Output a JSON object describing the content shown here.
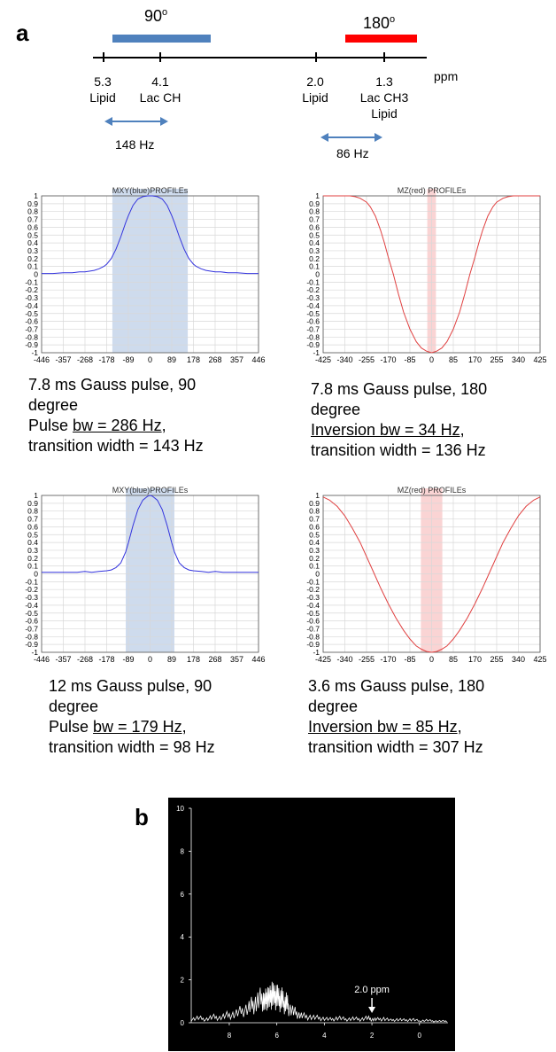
{
  "panel_a_label": "a",
  "panel_b_label": "b",
  "scale": {
    "bar_90_label": "90",
    "bar_90_sup": "o",
    "bar_90_color": "#4f81bd",
    "bar_180_label": "180",
    "bar_180_sup": "o",
    "bar_180_color": "#ff0000",
    "unit": "ppm",
    "ticks": [
      {
        "value": "5.3",
        "name": "Lipid"
      },
      {
        "value": "4.1",
        "name": "Lac CH"
      },
      {
        "value": "2.0",
        "name": "Lipid"
      },
      {
        "value": "1.3",
        "name": "Lac CH3\nLipid"
      }
    ],
    "arrow_left_label": "148 Hz",
    "arrow_right_label": "86 Hz",
    "arrow_color": "#4f81bd"
  },
  "captions": [
    {
      "line1": "7.8 ms Gauss pulse, 90",
      "line2": "degree",
      "line3_pre": "Pulse ",
      "line3_u": "bw = 286 Hz",
      "line3_post": ",",
      "line4": "transition width = 143 Hz"
    },
    {
      "line1": "7.8 ms Gauss pulse, 180",
      "line2": "degree",
      "line3_pre": "",
      "line3_u": "Inversion bw = 34 Hz",
      "line3_post": ",",
      "line4": "transition width = 136 Hz"
    },
    {
      "line1": "12 ms Gauss pulse, 90",
      "line2": "degree",
      "line3_pre": "Pulse ",
      "line3_u": "bw = 179 Hz",
      "line3_post": ",",
      "line4": "transition width = 98 Hz"
    },
    {
      "line1": "3.6 ms Gauss pulse, 180",
      "line2": "degree",
      "line3_pre": "",
      "line3_u": "Inversion bw = 85 Hz",
      "line3_post": ",",
      "line4": "transition width = 307 Hz"
    }
  ],
  "chart_data": [
    {
      "type": "line",
      "title": "MXY(blue)PROFILEs",
      "series": [
        {
          "color": "#3333dd",
          "x": [
            -446,
            -400,
            -357,
            -320,
            -290,
            -268,
            -250,
            -230,
            -210,
            -190,
            -178,
            -160,
            -140,
            -120,
            -100,
            -89,
            -70,
            -50,
            -30,
            -10,
            0,
            10,
            30,
            50,
            70,
            89,
            100,
            120,
            140,
            160,
            178,
            190,
            210,
            230,
            250,
            268,
            290,
            320,
            357,
            400,
            446
          ],
          "y": [
            0.01,
            0.01,
            0.02,
            0.02,
            0.03,
            0.03,
            0.04,
            0.05,
            0.07,
            0.1,
            0.13,
            0.2,
            0.32,
            0.48,
            0.66,
            0.75,
            0.88,
            0.96,
            0.99,
            1.0,
            1.0,
            1.0,
            0.99,
            0.96,
            0.88,
            0.75,
            0.66,
            0.48,
            0.32,
            0.2,
            0.13,
            0.1,
            0.07,
            0.05,
            0.04,
            0.03,
            0.03,
            0.02,
            0.02,
            0.01,
            0.01
          ]
        }
      ],
      "xticks": [
        "-446",
        "-357",
        "-268",
        "-178",
        "-89",
        "0",
        "89",
        "178",
        "268",
        "357",
        "446"
      ],
      "xlim": [
        -446,
        446
      ],
      "ylim": [
        -1,
        1
      ],
      "yticks": [
        "1",
        "0.9",
        "0.8",
        "0.7",
        "0.6",
        "0.5",
        "0.4",
        "0.3",
        "0.2",
        "0.1",
        "0",
        "-0.1",
        "-0.2",
        "-0.3",
        "-0.4",
        "-0.5",
        "-0.6",
        "-0.7",
        "-0.8",
        "-0.9",
        "-1"
      ],
      "shade": [
        -155,
        155
      ],
      "shade_color": "#c5d5ea",
      "grid": true
    },
    {
      "type": "line",
      "title": "MZ(red) PROFILEs",
      "series": [
        {
          "color": "#e04040",
          "x": [
            -425,
            -400,
            -370,
            -340,
            -320,
            -300,
            -280,
            -255,
            -240,
            -220,
            -200,
            -185,
            -170,
            -150,
            -130,
            -110,
            -85,
            -60,
            -40,
            -20,
            0,
            20,
            40,
            60,
            85,
            110,
            130,
            150,
            170,
            185,
            200,
            220,
            240,
            255,
            280,
            300,
            320,
            340,
            370,
            400,
            425
          ],
          "y": [
            1.0,
            1.0,
            1.0,
            1.0,
            1.0,
            0.99,
            0.97,
            0.92,
            0.86,
            0.74,
            0.56,
            0.4,
            0.22,
            0.0,
            -0.25,
            -0.48,
            -0.7,
            -0.86,
            -0.94,
            -0.98,
            -1.0,
            -0.98,
            -0.94,
            -0.86,
            -0.7,
            -0.48,
            -0.25,
            0.0,
            0.22,
            0.4,
            0.56,
            0.74,
            0.86,
            0.92,
            0.97,
            0.99,
            1.0,
            1.0,
            1.0,
            1.0,
            1.0
          ]
        }
      ],
      "xticks": [
        "-425",
        "-340",
        "-255",
        "-170",
        "-85",
        "0",
        "85",
        "170",
        "255",
        "340",
        "425"
      ],
      "xlim": [
        -425,
        425
      ],
      "ylim": [
        -1,
        1
      ],
      "yticks": [
        "1",
        "0.9",
        "0.8",
        "0.7",
        "0.6",
        "0.5",
        "0.4",
        "0.3",
        "0.2",
        "0.1",
        "0",
        "-0.1",
        "-0.2",
        "-0.3",
        "-0.4",
        "-0.5",
        "-0.6",
        "-0.7",
        "-0.8",
        "-0.9",
        "-1"
      ],
      "shade": [
        -17,
        17
      ],
      "shade_color": "#f9cccc",
      "grid": true
    },
    {
      "type": "line",
      "title": "MXY(blue)PROFILEs",
      "series": [
        {
          "color": "#3333dd",
          "x": [
            -446,
            -400,
            -357,
            -300,
            -268,
            -240,
            -210,
            -178,
            -160,
            -140,
            -120,
            -100,
            -89,
            -70,
            -50,
            -30,
            -10,
            0,
            10,
            30,
            50,
            70,
            89,
            100,
            120,
            140,
            160,
            178,
            210,
            240,
            268,
            300,
            357,
            400,
            446
          ],
          "y": [
            0.02,
            0.02,
            0.02,
            0.02,
            0.03,
            0.02,
            0.03,
            0.04,
            0.05,
            0.08,
            0.14,
            0.28,
            0.4,
            0.62,
            0.82,
            0.94,
            0.99,
            1.0,
            0.99,
            0.94,
            0.82,
            0.62,
            0.4,
            0.28,
            0.14,
            0.08,
            0.05,
            0.04,
            0.03,
            0.02,
            0.03,
            0.02,
            0.02,
            0.02,
            0.02
          ]
        }
      ],
      "xticks": [
        "-446",
        "-357",
        "-268",
        "-178",
        "-89",
        "0",
        "89",
        "178",
        "268",
        "357",
        "446"
      ],
      "xlim": [
        -446,
        446
      ],
      "ylim": [
        -1,
        1
      ],
      "yticks": [
        "1",
        "0.9",
        "0.8",
        "0.7",
        "0.6",
        "0.5",
        "0.4",
        "0.3",
        "0.2",
        "0.1",
        "0",
        "-0.1",
        "-0.2",
        "-0.3",
        "-0.4",
        "-0.5",
        "-0.6",
        "-0.7",
        "-0.8",
        "-0.9",
        "-1"
      ],
      "shade": [
        -100,
        100
      ],
      "shade_color": "#c5d5ea",
      "grid": true
    },
    {
      "type": "line",
      "title": "MZ(red) PROFILEs",
      "series": [
        {
          "color": "#e04040",
          "x": [
            -425,
            -400,
            -370,
            -340,
            -310,
            -280,
            -255,
            -230,
            -200,
            -170,
            -140,
            -110,
            -85,
            -60,
            -40,
            -20,
            0,
            20,
            40,
            60,
            85,
            110,
            140,
            170,
            200,
            230,
            255,
            280,
            310,
            340,
            370,
            400,
            425
          ],
          "y": [
            0.98,
            0.94,
            0.86,
            0.74,
            0.58,
            0.4,
            0.22,
            0.04,
            -0.18,
            -0.38,
            -0.56,
            -0.72,
            -0.83,
            -0.92,
            -0.96,
            -0.99,
            -1.0,
            -0.99,
            -0.96,
            -0.92,
            -0.83,
            -0.72,
            -0.56,
            -0.38,
            -0.18,
            0.04,
            0.22,
            0.4,
            0.58,
            0.74,
            0.86,
            0.94,
            0.98
          ]
        }
      ],
      "xticks": [
        "-425",
        "-340",
        "-255",
        "-170",
        "-85",
        "0",
        "85",
        "170",
        "255",
        "340",
        "425"
      ],
      "xlim": [
        -425,
        425
      ],
      "ylim": [
        -1,
        1
      ],
      "yticks": [
        "1",
        "0.9",
        "0.8",
        "0.7",
        "0.6",
        "0.5",
        "0.4",
        "0.3",
        "0.2",
        "0.1",
        "0",
        "-0.1",
        "-0.2",
        "-0.3",
        "-0.4",
        "-0.5",
        "-0.6",
        "-0.7",
        "-0.8",
        "-0.9",
        "-1"
      ],
      "shade": [
        -42,
        42
      ],
      "shade_color": "#f9cccc",
      "grid": true
    },
    {
      "type": "line",
      "background": "#000000",
      "xlim": [
        9.6,
        -1.2
      ],
      "ylim": [
        0,
        10
      ],
      "xticks": [
        "8",
        "6",
        "4",
        "2",
        "0"
      ],
      "xtick_values": [
        8,
        6,
        4,
        2,
        0
      ],
      "yticks": [
        "10",
        "8",
        "6",
        "4",
        "2",
        "0"
      ],
      "ytick_values": [
        10,
        8,
        6,
        4,
        2,
        0
      ],
      "annotation": "2.0 ppm",
      "annotation_x": 2.0,
      "series": [
        {
          "color": "#ffffff",
          "x": [
            9.6,
            9.3,
            9.0,
            8.7,
            8.4,
            8.1,
            7.8,
            7.5,
            7.2,
            7.0,
            6.8,
            6.6,
            6.5,
            6.4,
            6.3,
            6.2,
            6.1,
            6.0,
            5.9,
            5.8,
            5.7,
            5.6,
            5.5,
            5.3,
            5.1,
            4.9,
            4.6,
            4.3,
            4.0,
            3.7,
            3.4,
            3.1,
            2.8,
            2.5,
            2.2,
            2.0,
            1.8,
            1.5,
            1.2,
            0.9,
            0.6,
            0.3,
            0.0,
            -0.3,
            -0.6,
            -0.9,
            -1.2
          ],
          "y": [
            0.2,
            0.3,
            0.2,
            0.35,
            0.3,
            0.45,
            0.5,
            0.7,
            0.9,
            1.1,
            1.3,
            1.5,
            1.2,
            1.7,
            1.4,
            1.9,
            1.5,
            1.8,
            1.3,
            1.6,
            1.1,
            1.3,
            0.9,
            0.7,
            0.5,
            0.4,
            0.35,
            0.3,
            0.25,
            0.2,
            0.3,
            0.2,
            0.25,
            0.2,
            0.3,
            0.2,
            0.2,
            0.25,
            0.15,
            0.2,
            0.15,
            0.2,
            0.1,
            0.15,
            0.1,
            0.1,
            0.1
          ]
        }
      ]
    }
  ]
}
